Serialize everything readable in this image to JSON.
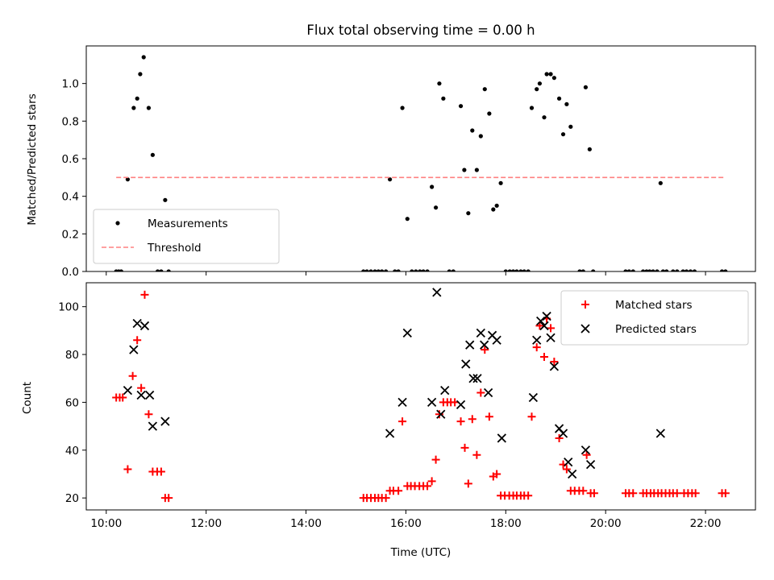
{
  "title": "Flux total observing time = 0.00 h",
  "chart_data": [
    {
      "type": "scatter",
      "name": "top",
      "ylabel": "Matched/Predicted stars",
      "ylim": [
        0,
        1.2
      ],
      "yticks": [
        0.0,
        0.2,
        0.4,
        0.6,
        0.8,
        1.0
      ],
      "ytick_labels": [
        "0.0",
        "0.2",
        "0.4",
        "0.6",
        "0.8",
        "1.0"
      ],
      "xlim_hours": [
        9.6,
        23.0
      ],
      "legend": {
        "placement": "lower-left",
        "entries": [
          "Measurements",
          "Threshold"
        ]
      },
      "series": [
        {
          "name": "Measurements",
          "marker": "dot",
          "color": "#000000",
          "points": [
            [
              10.2,
              0
            ],
            [
              10.25,
              0
            ],
            [
              10.3,
              0
            ],
            [
              10.43,
              0.49
            ],
            [
              10.55,
              0.87
            ],
            [
              10.62,
              0.92
            ],
            [
              10.68,
              1.05
            ],
            [
              10.75,
              1.14
            ],
            [
              10.85,
              0.87
            ],
            [
              10.93,
              0.62
            ],
            [
              11.03,
              0
            ],
            [
              11.1,
              0
            ],
            [
              11.18,
              0.38
            ],
            [
              11.25,
              0
            ],
            [
              15.15,
              0
            ],
            [
              15.22,
              0
            ],
            [
              15.3,
              0
            ],
            [
              15.38,
              0
            ],
            [
              15.45,
              0
            ],
            [
              15.52,
              0
            ],
            [
              15.6,
              0
            ],
            [
              15.68,
              0.49
            ],
            [
              15.78,
              0
            ],
            [
              15.85,
              0
            ],
            [
              15.93,
              0.87
            ],
            [
              16.03,
              0.28
            ],
            [
              16.12,
              0
            ],
            [
              16.2,
              0
            ],
            [
              16.28,
              0
            ],
            [
              16.35,
              0
            ],
            [
              16.43,
              0
            ],
            [
              16.52,
              0.45
            ],
            [
              16.6,
              0.34
            ],
            [
              16.67,
              1.0
            ],
            [
              16.75,
              0.92
            ],
            [
              16.87,
              0
            ],
            [
              16.95,
              0
            ],
            [
              17.1,
              0.88
            ],
            [
              17.17,
              0.54
            ],
            [
              17.25,
              0.31
            ],
            [
              17.33,
              0.75
            ],
            [
              17.42,
              0.54
            ],
            [
              17.5,
              0.72
            ],
            [
              17.58,
              0.97
            ],
            [
              17.67,
              0.84
            ],
            [
              17.75,
              0.33
            ],
            [
              17.82,
              0.35
            ],
            [
              17.9,
              0.47
            ],
            [
              18.0,
              0
            ],
            [
              18.08,
              0
            ],
            [
              18.15,
              0
            ],
            [
              18.22,
              0
            ],
            [
              18.3,
              0
            ],
            [
              18.37,
              0
            ],
            [
              18.45,
              0
            ],
            [
              18.52,
              0.87
            ],
            [
              18.62,
              0.97
            ],
            [
              18.68,
              1.0
            ],
            [
              18.77,
              0.82
            ],
            [
              18.82,
              1.05
            ],
            [
              18.9,
              1.05
            ],
            [
              18.97,
              1.03
            ],
            [
              19.07,
              0.92
            ],
            [
              19.15,
              0.73
            ],
            [
              19.22,
              0.89
            ],
            [
              19.3,
              0.77
            ],
            [
              19.48,
              0
            ],
            [
              19.55,
              0
            ],
            [
              19.6,
              0.98
            ],
            [
              19.68,
              0.65
            ],
            [
              19.75,
              0
            ],
            [
              20.4,
              0
            ],
            [
              20.47,
              0
            ],
            [
              20.55,
              0
            ],
            [
              20.75,
              0
            ],
            [
              20.82,
              0
            ],
            [
              20.88,
              0
            ],
            [
              20.95,
              0
            ],
            [
              21.03,
              0
            ],
            [
              21.1,
              0.47
            ],
            [
              21.15,
              0
            ],
            [
              21.22,
              0
            ],
            [
              21.35,
              0
            ],
            [
              21.43,
              0
            ],
            [
              21.55,
              0
            ],
            [
              21.62,
              0
            ],
            [
              21.7,
              0
            ],
            [
              21.78,
              0
            ],
            [
              22.33,
              0
            ],
            [
              22.4,
              0
            ]
          ]
        },
        {
          "name": "Threshold",
          "type": "line",
          "style": "dashed",
          "color": "#ff8080",
          "points": [
            [
              10.2,
              0.5
            ],
            [
              22.4,
              0.5
            ]
          ]
        }
      ]
    },
    {
      "type": "scatter",
      "name": "bottom",
      "ylabel": "Count",
      "xlabel": "Time (UTC)",
      "ylim": [
        15,
        110
      ],
      "yticks": [
        20,
        40,
        60,
        80,
        100
      ],
      "ytick_labels": [
        "20",
        "40",
        "60",
        "80",
        "100"
      ],
      "xlim_hours": [
        9.6,
        23.0
      ],
      "xticks": [
        10,
        12,
        14,
        16,
        18,
        20,
        22
      ],
      "xtick_labels": [
        "10:00",
        "12:00",
        "14:00",
        "16:00",
        "18:00",
        "20:00",
        "22:00"
      ],
      "legend": {
        "placement": "upper-right",
        "entries": [
          "Matched stars",
          "Predicted stars"
        ]
      },
      "series": [
        {
          "name": "Matched stars",
          "marker": "plus",
          "color": "#ff0000",
          "points": [
            [
              10.2,
              62
            ],
            [
              10.27,
              62
            ],
            [
              10.33,
              62
            ],
            [
              10.43,
              32
            ],
            [
              10.53,
              71
            ],
            [
              10.62,
              86
            ],
            [
              10.7,
              66
            ],
            [
              10.77,
              105
            ],
            [
              10.85,
              55
            ],
            [
              10.93,
              31
            ],
            [
              11.02,
              31
            ],
            [
              11.1,
              31
            ],
            [
              11.18,
              20
            ],
            [
              11.25,
              20
            ],
            [
              15.15,
              20
            ],
            [
              15.22,
              20
            ],
            [
              15.3,
              20
            ],
            [
              15.38,
              20
            ],
            [
              15.45,
              20
            ],
            [
              15.52,
              20
            ],
            [
              15.6,
              20
            ],
            [
              15.68,
              23
            ],
            [
              15.75,
              23
            ],
            [
              15.85,
              23
            ],
            [
              15.93,
              52
            ],
            [
              16.03,
              25
            ],
            [
              16.1,
              25
            ],
            [
              16.18,
              25
            ],
            [
              16.27,
              25
            ],
            [
              16.35,
              25
            ],
            [
              16.43,
              25
            ],
            [
              16.52,
              27
            ],
            [
              16.6,
              36
            ],
            [
              16.67,
              55
            ],
            [
              16.75,
              60
            ],
            [
              16.83,
              60
            ],
            [
              16.9,
              60
            ],
            [
              16.98,
              60
            ],
            [
              17.1,
              52
            ],
            [
              17.18,
              41
            ],
            [
              17.25,
              26
            ],
            [
              17.33,
              53
            ],
            [
              17.42,
              38
            ],
            [
              17.5,
              64
            ],
            [
              17.58,
              82
            ],
            [
              17.67,
              54
            ],
            [
              17.75,
              29
            ],
            [
              17.82,
              30
            ],
            [
              17.9,
              21
            ],
            [
              17.98,
              21
            ],
            [
              18.07,
              21
            ],
            [
              18.15,
              21
            ],
            [
              18.22,
              21
            ],
            [
              18.3,
              21
            ],
            [
              18.37,
              21
            ],
            [
              18.45,
              21
            ],
            [
              18.52,
              54
            ],
            [
              18.62,
              83
            ],
            [
              18.68,
              92
            ],
            [
              18.77,
              79
            ],
            [
              18.82,
              95
            ],
            [
              18.9,
              91
            ],
            [
              18.97,
              77
            ],
            [
              19.07,
              45
            ],
            [
              19.15,
              34
            ],
            [
              19.22,
              32
            ],
            [
              19.3,
              23
            ],
            [
              19.38,
              23
            ],
            [
              19.47,
              23
            ],
            [
              19.55,
              23
            ],
            [
              19.62,
              38
            ],
            [
              19.7,
              22
            ],
            [
              19.77,
              22
            ],
            [
              20.4,
              22
            ],
            [
              20.47,
              22
            ],
            [
              20.55,
              22
            ],
            [
              20.75,
              22
            ],
            [
              20.82,
              22
            ],
            [
              20.9,
              22
            ],
            [
              20.97,
              22
            ],
            [
              21.05,
              22
            ],
            [
              21.12,
              22
            ],
            [
              21.2,
              22
            ],
            [
              21.28,
              22
            ],
            [
              21.35,
              22
            ],
            [
              21.43,
              22
            ],
            [
              21.57,
              22
            ],
            [
              21.65,
              22
            ],
            [
              21.73,
              22
            ],
            [
              21.8,
              22
            ],
            [
              22.33,
              22
            ],
            [
              22.4,
              22
            ]
          ]
        },
        {
          "name": "Predicted stars",
          "marker": "x",
          "color": "#000000",
          "points": [
            [
              10.43,
              65
            ],
            [
              10.55,
              82
            ],
            [
              10.62,
              93
            ],
            [
              10.7,
              63
            ],
            [
              10.77,
              92
            ],
            [
              10.87,
              63
            ],
            [
              10.93,
              50
            ],
            [
              11.18,
              52
            ],
            [
              15.68,
              47
            ],
            [
              15.93,
              60
            ],
            [
              16.03,
              89
            ],
            [
              16.52,
              60
            ],
            [
              16.62,
              106
            ],
            [
              16.7,
              55
            ],
            [
              16.78,
              65
            ],
            [
              17.1,
              59
            ],
            [
              17.2,
              76
            ],
            [
              17.28,
              84
            ],
            [
              17.35,
              70
            ],
            [
              17.43,
              70
            ],
            [
              17.5,
              89
            ],
            [
              17.57,
              84
            ],
            [
              17.65,
              64
            ],
            [
              17.73,
              88
            ],
            [
              17.82,
              86
            ],
            [
              17.92,
              45
            ],
            [
              18.55,
              62
            ],
            [
              18.62,
              86
            ],
            [
              18.7,
              94
            ],
            [
              18.77,
              92
            ],
            [
              18.82,
              96
            ],
            [
              18.9,
              87
            ],
            [
              18.97,
              75
            ],
            [
              19.07,
              49
            ],
            [
              19.15,
              47
            ],
            [
              19.25,
              35
            ],
            [
              19.33,
              30
            ],
            [
              19.6,
              40
            ],
            [
              19.7,
              34
            ],
            [
              21.1,
              47
            ]
          ]
        }
      ]
    }
  ]
}
